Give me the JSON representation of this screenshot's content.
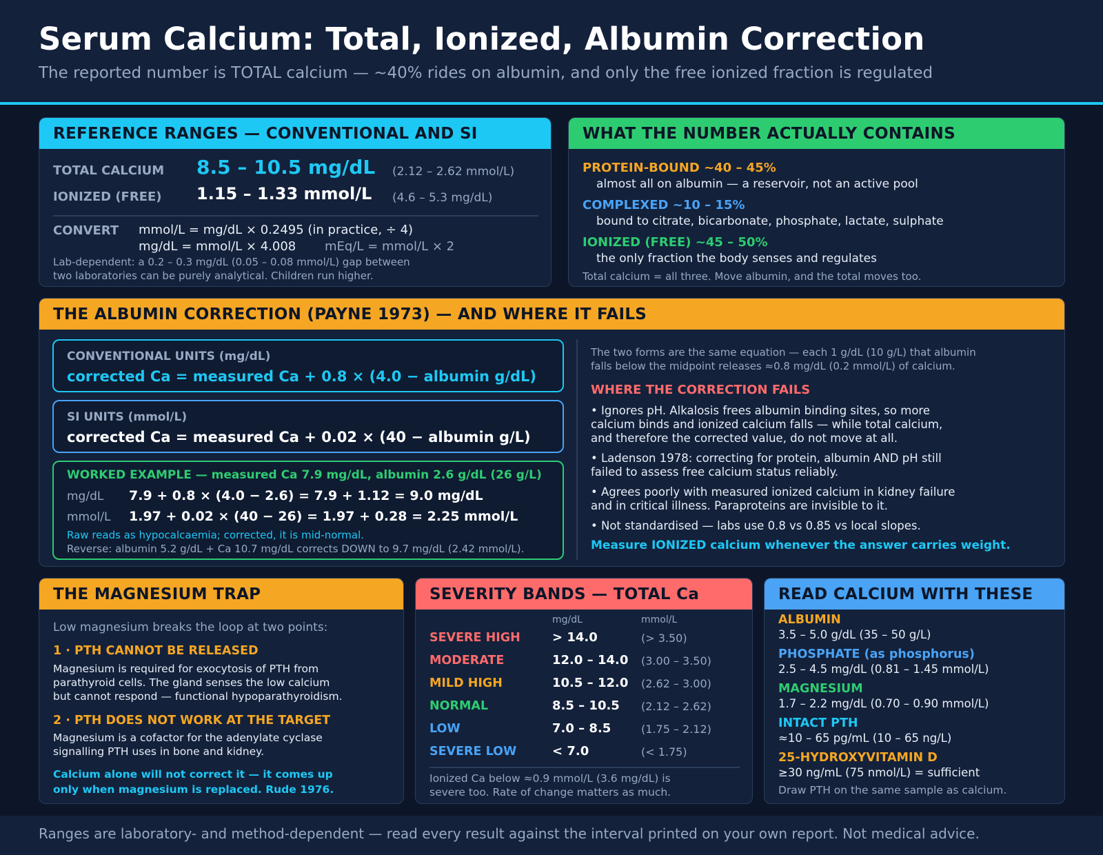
{
  "header": {
    "title": "Serum Calcium: Total, Ionized, Albumin Correction",
    "subtitle": "The reported number is TOTAL calcium — ~40% rides on albumin, and only the free ionized fraction is regulated"
  },
  "reference": {
    "heading": "REFERENCE RANGES — CONVENTIONAL AND SI",
    "total_label": "TOTAL CALCIUM",
    "total_value": "8.5 – 10.5 mg/dL",
    "total_si": "(2.12 – 2.62 mmol/L)",
    "ionized_label": "IONIZED (FREE)",
    "ionized_value": "1.15 – 1.33 mmol/L",
    "ionized_conv": "(4.6 – 5.3 mg/dL)",
    "convert_label": "CONVERT",
    "convert_line1": "mmol/L = mg/dL × 0.2495 (in practice, ÷ 4)",
    "convert_line2a": "mg/dL = mmol/L × 4.008",
    "convert_line2b": "mEq/L = mmol/L × 2",
    "note_line1": "Lab-dependent: a 0.2 – 0.3 mg/dL (0.05 – 0.08 mmol/L) gap between",
    "note_line2": "two laboratories can be purely analytical. Children run higher."
  },
  "contains": {
    "heading": "WHAT THE NUMBER ACTUALLY CONTAINS",
    "protein_title": "PROTEIN-BOUND ~40 – 45%",
    "protein_desc": "almost all on albumin — a reservoir, not an active pool",
    "complexed_title": "COMPLEXED ~10 – 15%",
    "complexed_desc": "bound to citrate, bicarbonate, phosphate, lactate, sulphate",
    "ionized_title": "IONIZED (FREE) ~45 – 50%",
    "ionized_desc": "the only fraction the body senses and regulates",
    "note": "Total calcium = all three. Move albumin, and the total moves too."
  },
  "albumin": {
    "heading": "THE ALBUMIN CORRECTION (PAYNE 1973) — AND WHERE IT FAILS",
    "conv_label": "CONVENTIONAL UNITS (mg/dL)",
    "conv_formula": "corrected Ca = measured Ca + 0.8 × (4.0 − albumin g/dL)",
    "si_label": "SI UNITS (mmol/L)",
    "si_formula": "corrected Ca = measured Ca + 0.02 × (40 − albumin g/L)",
    "example_label": "WORKED EXAMPLE — measured Ca 7.9 mg/dL, albumin 2.6 g/dL (26 g/L)",
    "ex_unit1": "mg/dL",
    "ex_calc1": "7.9 + 0.8 × (4.0 − 2.6) = 7.9 + 1.12 = 9.0 mg/dL",
    "ex_unit2": "mmol/L",
    "ex_calc2": "1.97 + 0.02 × (40 − 26) = 1.97 + 0.28 = 2.25 mmol/L",
    "ex_note1": "Raw reads as hypocalcaemia; corrected, it is mid-normal.",
    "ex_note2": "Reverse: albumin 5.2 g/dL + Ca 10.7 mg/dL corrects DOWN to 9.7 mg/dL (2.42 mmol/L).",
    "intro_line1": "The two forms are the same equation — each 1 g/dL (10 g/L) that albumin",
    "intro_line2": "falls below the midpoint releases ≈0.8 mg/dL (0.2 mmol/L) of calcium.",
    "fails_title": "WHERE THE CORRECTION FAILS",
    "b1_l1": "• Ignores pH. Alkalosis frees albumin binding sites, so more",
    "b1_l2": "calcium binds and ionized calcium falls — while total calcium,",
    "b1_l3": "and therefore the corrected value, do not move at all.",
    "b2_l1": "• Ladenson 1978: correcting for protein, albumin AND pH still",
    "b2_l2": "failed to assess free calcium status reliably.",
    "b3_l1": "• Agrees poorly with measured ionized calcium in kidney failure",
    "b3_l2": "and in critical illness. Paraproteins are invisible to it.",
    "b4_l1": "• Not standardised — labs use 0.8 vs 0.85 vs local slopes.",
    "conclusion": "Measure IONIZED calcium whenever the answer carries weight."
  },
  "magnesium": {
    "heading": "THE MAGNESIUM TRAP",
    "intro": "Low magnesium breaks the loop at two points:",
    "p1_title": "1 · PTH CANNOT BE RELEASED",
    "p1_l1": "Magnesium is required for exocytosis of PTH from",
    "p1_l2": "parathyroid cells. The gland senses the low calcium",
    "p1_l3": "but cannot respond — functional hypoparathyroidism.",
    "p2_title": "2 · PTH DOES NOT WORK AT THE TARGET",
    "p2_l1": "Magnesium is a cofactor for the adenylate cyclase",
    "p2_l2": "signalling PTH uses in bone and kidney.",
    "c_l1": "Calcium alone will not correct it — it comes up",
    "c_l2": "only when magnesium is replaced. Rude 1976."
  },
  "severity": {
    "heading": "SEVERITY BANDS — TOTAL Ca",
    "col_conv": "mg/dL",
    "col_si": "mmol/L",
    "rows": [
      {
        "label": "SEVERE HIGH",
        "conv": "> 14.0",
        "si": "(> 3.50)",
        "color": "#ff6b6b"
      },
      {
        "label": "MODERATE",
        "conv": "12.0 – 14.0",
        "si": "(3.00 – 3.50)",
        "color": "#ff6b6b"
      },
      {
        "label": "MILD HIGH",
        "conv": "10.5 – 12.0",
        "si": "(2.62 – 3.00)",
        "color": "#f5a623"
      },
      {
        "label": "NORMAL",
        "conv": "8.5 – 10.5",
        "si": "(2.12 – 2.62)",
        "color": "#2ecc71"
      },
      {
        "label": "LOW",
        "conv": "7.0 – 8.5",
        "si": "(1.75 – 2.12)",
        "color": "#4aa3f5"
      },
      {
        "label": "SEVERE LOW",
        "conv": "< 7.0",
        "si": "(< 1.75)",
        "color": "#4aa3f5"
      }
    ],
    "note_l1": "Ionized Ca below ≈0.9 mmol/L (3.6 mg/dL) is",
    "note_l2": "severe too. Rate of change matters as much."
  },
  "readwith": {
    "heading": "READ CALCIUM WITH THESE",
    "items": [
      {
        "name": "ALBUMIN",
        "range": "3.5 – 5.0 g/dL (35 – 50 g/L)",
        "color": "#f5a623"
      },
      {
        "name": "PHOSPHATE (as phosphorus)",
        "range": "2.5 – 4.5 mg/dL (0.81 – 1.45 mmol/L)",
        "color": "#4aa3f5"
      },
      {
        "name": "MAGNESIUM",
        "range": "1.7 – 2.2 mg/dL (0.70 – 0.90 mmol/L)",
        "color": "#2ecc71"
      },
      {
        "name": "INTACT PTH",
        "range": "≈10 – 65 pg/mL (10 – 65 ng/L)",
        "color": "#1ec8f4"
      },
      {
        "name": "25-HYDROXYVITAMIN D",
        "range": "≥30 ng/mL (75 nmol/L) = sufficient",
        "color": "#f5a623"
      }
    ],
    "note": "Draw PTH on the same sample as calcium."
  },
  "footer": {
    "text": "Ranges are laboratory- and method-dependent — read every result against the interval printed on your own report. Not medical advice."
  }
}
